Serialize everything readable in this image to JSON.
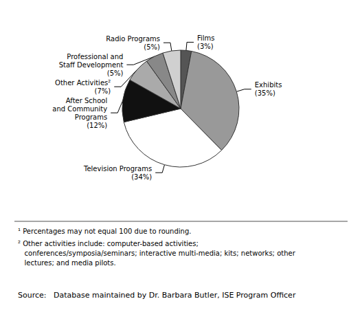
{
  "chart_data": {
    "type": "pie",
    "categories": [
      "Films\n(3%)",
      "Exhibits\n(35%)",
      "Television Programs\n(34%)",
      "After School\nand Community\nPrograms\n(12%)",
      "Other Activities²\n(7%)",
      "Professional and\nStaff Development\n(5%)",
      "Radio Programs\n(5%)"
    ],
    "values": [
      3,
      35,
      34,
      12,
      7,
      5,
      5
    ],
    "colors": [
      "#555555",
      "#999999",
      "#ffffff",
      "#111111",
      "#aaaaaa",
      "#888888",
      "#d0d0d0"
    ],
    "annotations": [
      "¹ Percentages may not equal 100 due to rounding.",
      "² Other activities include: computer-based activities;\n   conferences/symposia/seminars; interactive multi-media; kits; networks; other\n   lectures; and media pilots.",
      "Source:   Database maintained by Dr. Barbara Butler, ISE Program Officer"
    ]
  }
}
